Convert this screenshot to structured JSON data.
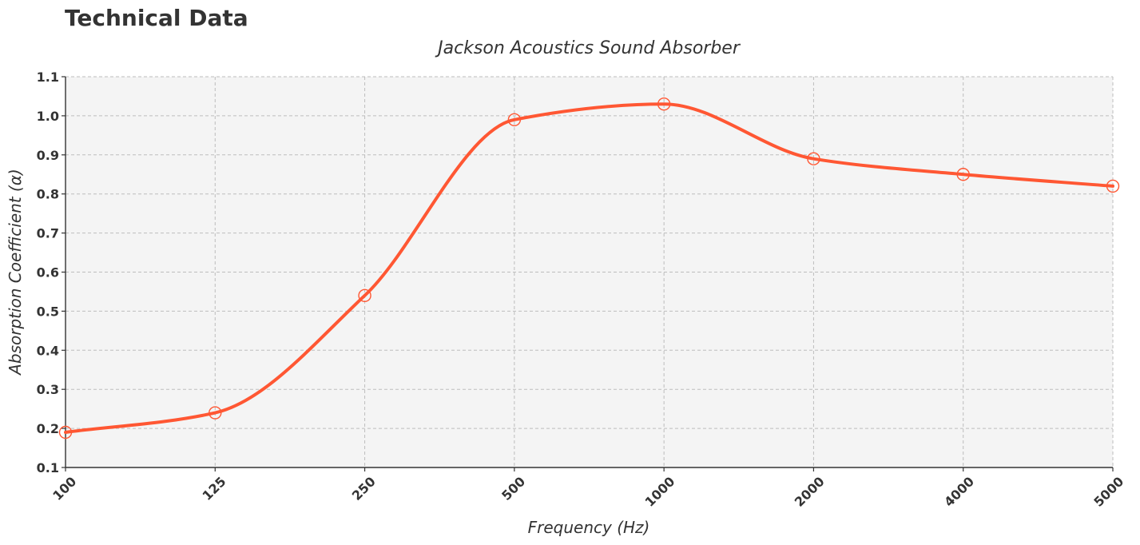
{
  "page": {
    "heading": "Technical Data"
  },
  "chart_data": {
    "type": "line",
    "title": "Jackson Acoustics Sound Absorber",
    "xlabel": "Frequency (Hz)",
    "ylabel": "Absorption Coefficient (α)",
    "categories": [
      "100",
      "125",
      "250",
      "500",
      "1000",
      "2000",
      "4000",
      "5000"
    ],
    "series": [
      {
        "values": [
          0.19,
          0.24,
          0.54,
          0.99,
          1.03,
          0.89,
          0.85,
          0.82
        ],
        "color": "#ff5733",
        "marker": "hollow-circle",
        "smooth": true
      }
    ],
    "ylim": [
      0.1,
      1.1
    ],
    "yticks": [
      "0.1",
      "0.2",
      "0.3",
      "0.4",
      "0.5",
      "0.6",
      "0.7",
      "0.8",
      "0.9",
      "1.0",
      "1.1"
    ],
    "grid": true,
    "grid_style": "dashed",
    "plot_background": "#f4f4f4",
    "legend": "none"
  }
}
